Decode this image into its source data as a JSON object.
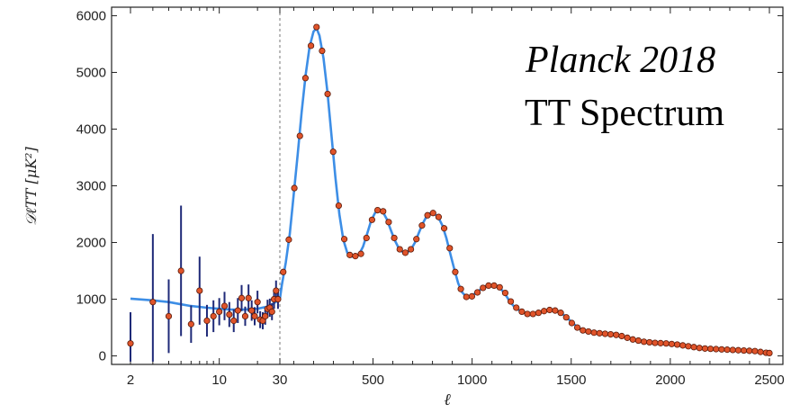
{
  "chart_data": {
    "type": "scatter",
    "title_line1": "Planck 2018",
    "title_line2": "TT Spectrum",
    "xlabel": "ℓ",
    "ylabel": "𝒟ℓTT [μK²]",
    "ylim": [
      -150,
      6150
    ],
    "y_ticks": [
      "0",
      "1000",
      "2000",
      "3000",
      "4000",
      "5000",
      "6000"
    ],
    "y_tick_values": [
      0,
      1000,
      2000,
      3000,
      4000,
      5000,
      6000
    ],
    "x_ticks": [
      "2",
      "10",
      "30",
      "500",
      "1000",
      "1500",
      "2000",
      "2500"
    ],
    "x_tick_values": [
      2,
      10,
      30,
      500,
      1000,
      1500,
      2000,
      2500
    ],
    "x_scale": "log for ℓ < 30, linear for ℓ ≥ 30",
    "x_split": 30,
    "series": [
      {
        "type": "errorbar",
        "color": "#1f2a78",
        "marker_color": "#e0542a",
        "points": [
          [
            2,
            220,
            550
          ],
          [
            3,
            950,
            1200
          ],
          [
            4,
            700,
            650
          ],
          [
            5,
            1500,
            1150
          ],
          [
            6,
            560,
            330
          ],
          [
            7,
            1150,
            600
          ],
          [
            8,
            620,
            280
          ],
          [
            9,
            700,
            280
          ],
          [
            10,
            780,
            240
          ],
          [
            11,
            880,
            250
          ],
          [
            12,
            730,
            220
          ],
          [
            13,
            620,
            200
          ],
          [
            14,
            800,
            220
          ],
          [
            15,
            1020,
            230
          ],
          [
            16,
            700,
            170
          ],
          [
            17,
            1020,
            240
          ],
          [
            18,
            800,
            180
          ],
          [
            19,
            700,
            160
          ],
          [
            20,
            950,
            200
          ],
          [
            21,
            640,
            150
          ],
          [
            22,
            620,
            150
          ],
          [
            23,
            700,
            150
          ],
          [
            24,
            830,
            160
          ],
          [
            25,
            850,
            160
          ],
          [
            26,
            780,
            150
          ],
          [
            27,
            1000,
            170
          ],
          [
            28,
            1150,
            180
          ],
          [
            29,
            1000,
            170
          ]
        ]
      },
      {
        "type": "scatter",
        "color": "#e0542a",
        "points": [
          [
            47,
            1480
          ],
          [
            75,
            2050
          ],
          [
            103,
            2960
          ],
          [
            131,
            3880
          ],
          [
            159,
            4900
          ],
          [
            187,
            5470
          ],
          [
            215,
            5800
          ],
          [
            243,
            5380
          ],
          [
            271,
            4620
          ],
          [
            299,
            3600
          ],
          [
            327,
            2650
          ],
          [
            355,
            2060
          ],
          [
            383,
            1780
          ],
          [
            411,
            1760
          ],
          [
            439,
            1800
          ],
          [
            467,
            2080
          ],
          [
            495,
            2400
          ],
          [
            523,
            2570
          ],
          [
            551,
            2550
          ],
          [
            579,
            2360
          ],
          [
            607,
            2080
          ],
          [
            635,
            1880
          ],
          [
            663,
            1820
          ],
          [
            691,
            1880
          ],
          [
            719,
            2060
          ],
          [
            747,
            2300
          ],
          [
            775,
            2480
          ],
          [
            803,
            2520
          ],
          [
            831,
            2450
          ],
          [
            859,
            2250
          ],
          [
            887,
            1900
          ],
          [
            915,
            1480
          ],
          [
            943,
            1180
          ],
          [
            971,
            1040
          ],
          [
            999,
            1050
          ],
          [
            1027,
            1120
          ],
          [
            1055,
            1200
          ],
          [
            1083,
            1240
          ],
          [
            1111,
            1240
          ],
          [
            1139,
            1210
          ],
          [
            1167,
            1110
          ],
          [
            1195,
            960
          ],
          [
            1223,
            850
          ],
          [
            1251,
            780
          ],
          [
            1279,
            740
          ],
          [
            1307,
            740
          ],
          [
            1335,
            760
          ],
          [
            1363,
            790
          ],
          [
            1391,
            810
          ],
          [
            1419,
            800
          ],
          [
            1447,
            760
          ],
          [
            1475,
            680
          ],
          [
            1503,
            580
          ],
          [
            1531,
            500
          ],
          [
            1559,
            450
          ],
          [
            1587,
            430
          ],
          [
            1615,
            410
          ],
          [
            1643,
            400
          ],
          [
            1671,
            390
          ],
          [
            1699,
            380
          ],
          [
            1727,
            370
          ],
          [
            1755,
            350
          ],
          [
            1783,
            320
          ],
          [
            1811,
            290
          ],
          [
            1839,
            270
          ],
          [
            1867,
            250
          ],
          [
            1895,
            240
          ],
          [
            1923,
            230
          ],
          [
            1951,
            225
          ],
          [
            1979,
            220
          ],
          [
            2007,
            210
          ],
          [
            2035,
            200
          ],
          [
            2063,
            185
          ],
          [
            2091,
            170
          ],
          [
            2119,
            155
          ],
          [
            2147,
            140
          ],
          [
            2175,
            130
          ],
          [
            2203,
            125
          ],
          [
            2231,
            120
          ],
          [
            2259,
            115
          ],
          [
            2287,
            110
          ],
          [
            2315,
            105
          ],
          [
            2343,
            100
          ],
          [
            2371,
            95
          ],
          [
            2399,
            90
          ],
          [
            2427,
            85
          ],
          [
            2455,
            70
          ],
          [
            2483,
            55
          ],
          [
            2500,
            50
          ]
        ]
      },
      {
        "type": "line",
        "color": "#3d8ee6",
        "points": [
          [
            2,
            1010
          ],
          [
            3,
            980
          ],
          [
            4,
            950
          ],
          [
            5,
            910
          ],
          [
            6,
            880
          ],
          [
            8,
            850
          ],
          [
            10,
            830
          ],
          [
            12,
            820
          ],
          [
            15,
            815
          ],
          [
            20,
            830
          ],
          [
            25,
            880
          ],
          [
            30,
            1000
          ],
          [
            40,
            1250
          ],
          [
            60,
            1650
          ],
          [
            80,
            2150
          ],
          [
            100,
            2850
          ],
          [
            120,
            3550
          ],
          [
            140,
            4300
          ],
          [
            160,
            4950
          ],
          [
            180,
            5450
          ],
          [
            200,
            5720
          ],
          [
            215,
            5780
          ],
          [
            230,
            5650
          ],
          [
            250,
            5250
          ],
          [
            270,
            4650
          ],
          [
            290,
            3900
          ],
          [
            310,
            3150
          ],
          [
            330,
            2500
          ],
          [
            350,
            2050
          ],
          [
            370,
            1820
          ],
          [
            390,
            1750
          ],
          [
            410,
            1760
          ],
          [
            430,
            1790
          ],
          [
            450,
            1930
          ],
          [
            470,
            2150
          ],
          [
            490,
            2380
          ],
          [
            510,
            2520
          ],
          [
            530,
            2580
          ],
          [
            550,
            2540
          ],
          [
            570,
            2410
          ],
          [
            590,
            2220
          ],
          [
            610,
            2040
          ],
          [
            630,
            1900
          ],
          [
            650,
            1830
          ],
          [
            670,
            1820
          ],
          [
            690,
            1870
          ],
          [
            710,
            1990
          ],
          [
            730,
            2160
          ],
          [
            750,
            2330
          ],
          [
            770,
            2460
          ],
          [
            790,
            2520
          ],
          [
            810,
            2510
          ],
          [
            830,
            2440
          ],
          [
            850,
            2300
          ],
          [
            870,
            2080
          ],
          [
            890,
            1800
          ],
          [
            910,
            1530
          ],
          [
            930,
            1280
          ],
          [
            950,
            1120
          ],
          [
            970,
            1050
          ],
          [
            990,
            1050
          ],
          [
            1010,
            1090
          ],
          [
            1030,
            1140
          ],
          [
            1050,
            1190
          ],
          [
            1070,
            1230
          ],
          [
            1090,
            1240
          ],
          [
            1110,
            1240
          ],
          [
            1130,
            1220
          ],
          [
            1150,
            1160
          ],
          [
            1170,
            1070
          ],
          [
            1190,
            960
          ],
          [
            1210,
            880
          ],
          [
            1230,
            820
          ],
          [
            1250,
            780
          ],
          [
            1270,
            750
          ],
          [
            1300,
            740
          ],
          [
            1330,
            760
          ],
          [
            1360,
            790
          ],
          [
            1390,
            810
          ],
          [
            1420,
            800
          ],
          [
            1450,
            760
          ],
          [
            1480,
            670
          ],
          [
            1510,
            570
          ],
          [
            1540,
            490
          ],
          [
            1570,
            440
          ],
          [
            1600,
            420
          ],
          [
            1650,
            400
          ],
          [
            1700,
            380
          ],
          [
            1750,
            355
          ],
          [
            1800,
            305
          ],
          [
            1850,
            260
          ],
          [
            1900,
            240
          ],
          [
            1950,
            225
          ],
          [
            2000,
            210
          ],
          [
            2050,
            190
          ],
          [
            2100,
            165
          ],
          [
            2150,
            140
          ],
          [
            2200,
            125
          ],
          [
            2250,
            115
          ],
          [
            2300,
            105
          ],
          [
            2350,
            98
          ],
          [
            2400,
            90
          ],
          [
            2450,
            72
          ],
          [
            2500,
            50
          ]
        ]
      }
    ],
    "vline_at": 30,
    "grid": false,
    "legend": "none"
  }
}
